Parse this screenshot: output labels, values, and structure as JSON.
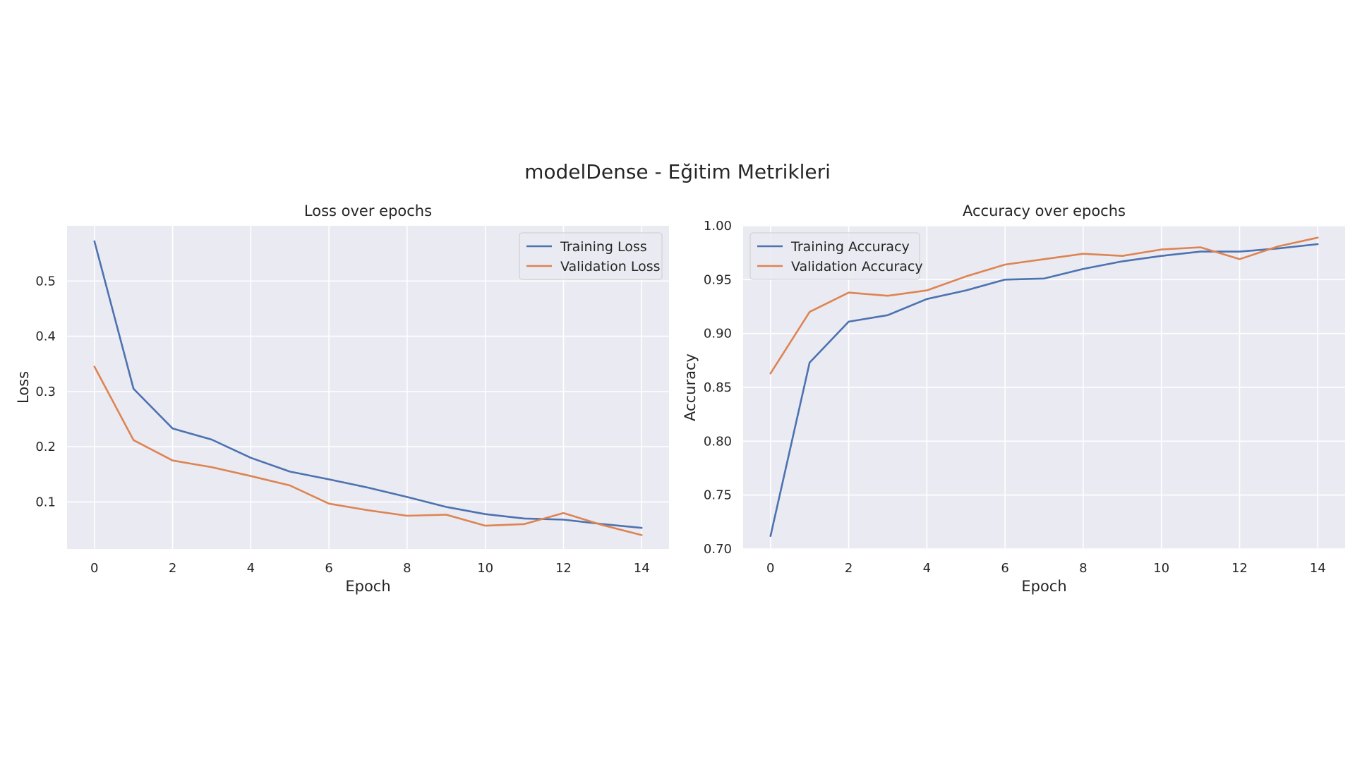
{
  "figure": {
    "suptitle": "modelDense - Eğitim Metrikleri"
  },
  "colors": {
    "background": "#ffffff",
    "plot_background": "#eaeaf2",
    "grid": "#ffffff",
    "training": "#4c72b0",
    "validation": "#dd8452",
    "text": "#262626"
  },
  "chart_data": [
    {
      "type": "line",
      "title": "Loss over epochs",
      "xlabel": "Epoch",
      "ylabel": "Loss",
      "xlim": [
        -0.7,
        14.7
      ],
      "ylim": [
        0.015,
        0.6
      ],
      "xticks": [
        0,
        2,
        4,
        6,
        8,
        10,
        12,
        14
      ],
      "yticks": [
        0.1,
        0.2,
        0.3,
        0.4,
        0.5
      ],
      "ytick_labels": [
        "0.1",
        "0.2",
        "0.3",
        "0.4",
        "0.5"
      ],
      "grid": true,
      "legend_position": "top-right",
      "x": [
        0,
        1,
        2,
        3,
        4,
        5,
        6,
        7,
        8,
        9,
        10,
        11,
        12,
        13,
        14
      ],
      "series": [
        {
          "name": "Training Loss",
          "color": "#4c72b0",
          "values": [
            0.572,
            0.305,
            0.233,
            0.213,
            0.18,
            0.155,
            0.141,
            0.126,
            0.109,
            0.091,
            0.078,
            0.07,
            0.068,
            0.06,
            0.053
          ]
        },
        {
          "name": "Validation Loss",
          "color": "#dd8452",
          "values": [
            0.345,
            0.212,
            0.175,
            0.163,
            0.147,
            0.13,
            0.097,
            0.085,
            0.075,
            0.077,
            0.057,
            0.06,
            0.08,
            0.058,
            0.04
          ]
        }
      ]
    },
    {
      "type": "line",
      "title": "Accuracy over epochs",
      "xlabel": "Epoch",
      "ylabel": "Accuracy",
      "xlim": [
        -0.7,
        14.7
      ],
      "ylim": [
        0.7,
        1.0
      ],
      "xticks": [
        0,
        2,
        4,
        6,
        8,
        10,
        12,
        14
      ],
      "yticks": [
        0.7,
        0.75,
        0.8,
        0.85,
        0.9,
        0.95,
        1.0
      ],
      "ytick_labels": [
        "0.70",
        "0.75",
        "0.80",
        "0.85",
        "0.90",
        "0.95",
        "1.00"
      ],
      "grid": true,
      "legend_position": "top-left",
      "x": [
        0,
        1,
        2,
        3,
        4,
        5,
        6,
        7,
        8,
        9,
        10,
        11,
        12,
        13,
        14
      ],
      "series": [
        {
          "name": "Training Accuracy",
          "color": "#4c72b0",
          "values": [
            0.712,
            0.873,
            0.911,
            0.917,
            0.932,
            0.94,
            0.95,
            0.951,
            0.96,
            0.967,
            0.972,
            0.976,
            0.976,
            0.979,
            0.983
          ]
        },
        {
          "name": "Validation Accuracy",
          "color": "#dd8452",
          "values": [
            0.863,
            0.92,
            0.938,
            0.935,
            0.94,
            0.953,
            0.964,
            0.969,
            0.974,
            0.972,
            0.978,
            0.98,
            0.969,
            0.981,
            0.989
          ]
        }
      ]
    }
  ]
}
